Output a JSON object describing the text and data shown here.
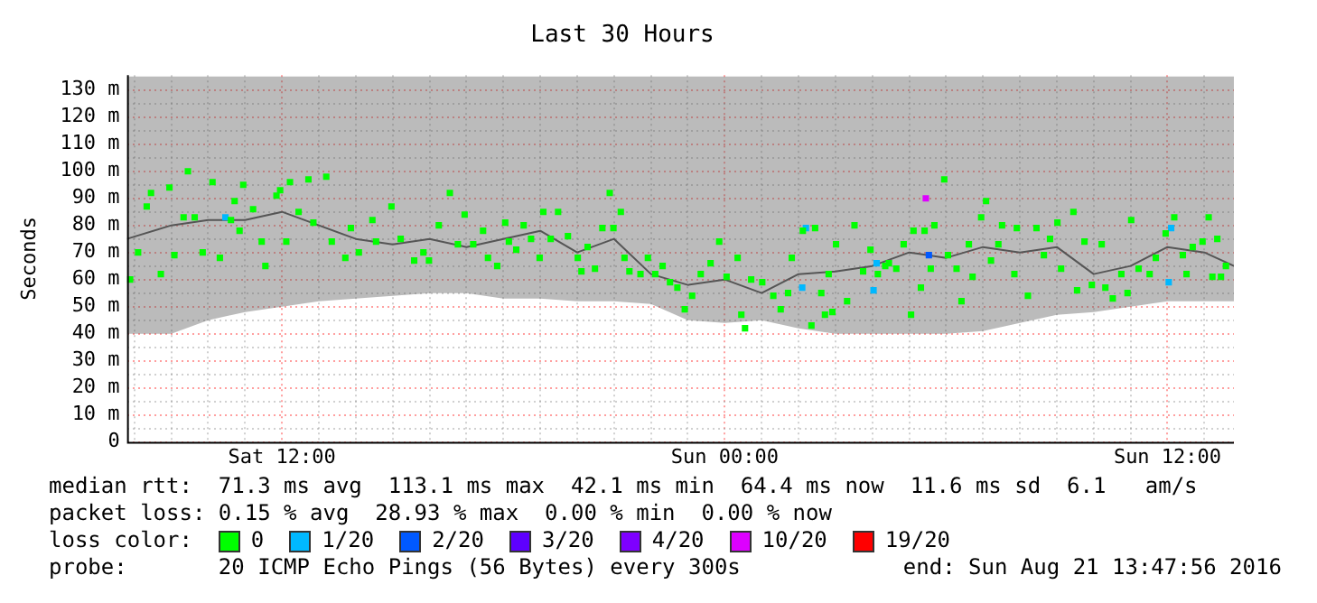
{
  "chart_data": {
    "type": "scatter",
    "title": "Last 30 Hours",
    "ylabel": "Seconds",
    "legend_title": "loss color:",
    "legend": "bottom",
    "marker": "square",
    "grid": true,
    "annotations": [
      "median rtt:  71.3 ms avg  113.1 ms max  42.1 ms min  64.4 ms now  11.6 ms sd  6.1   am/s",
      "packet loss: 0.15 % avg  28.93 % max  0.00 % min  0.00 % now",
      "probe:       20 ICMP Echo Pings (56 Bytes) every 300s",
      "end: Sun Aug 21 13:47:56 2016"
    ],
    "xlim": [
      "2016-08-20T07:48",
      "2016-08-21T13:48"
    ],
    "xticks": [
      {
        "value": "2016-08-20T08:00",
        "label": null
      },
      {
        "value": "2016-08-20T09:00",
        "label": null
      },
      {
        "value": "2016-08-20T10:00",
        "label": null
      },
      {
        "value": "2016-08-20T11:00",
        "label": null
      },
      {
        "value": "2016-08-20T12:00",
        "label": "Sat 12:00"
      },
      {
        "value": "2016-08-20T13:00",
        "label": null
      },
      {
        "value": "2016-08-20T14:00",
        "label": null
      },
      {
        "value": "2016-08-20T15:00",
        "label": null
      },
      {
        "value": "2016-08-20T16:00",
        "label": null
      },
      {
        "value": "2016-08-20T17:00",
        "label": null
      },
      {
        "value": "2016-08-20T18:00",
        "label": null
      },
      {
        "value": "2016-08-20T19:00",
        "label": null
      },
      {
        "value": "2016-08-20T20:00",
        "label": null
      },
      {
        "value": "2016-08-20T21:00",
        "label": null
      },
      {
        "value": "2016-08-20T22:00",
        "label": null
      },
      {
        "value": "2016-08-20T23:00",
        "label": null
      },
      {
        "value": "2016-08-21T00:00",
        "label": "Sun 00:00"
      },
      {
        "value": "2016-08-21T01:00",
        "label": null
      },
      {
        "value": "2016-08-21T02:00",
        "label": null
      },
      {
        "value": "2016-08-21T03:00",
        "label": null
      },
      {
        "value": "2016-08-21T04:00",
        "label": null
      },
      {
        "value": "2016-08-21T05:00",
        "label": null
      },
      {
        "value": "2016-08-21T06:00",
        "label": null
      },
      {
        "value": "2016-08-21T07:00",
        "label": null
      },
      {
        "value": "2016-08-21T08:00",
        "label": null
      },
      {
        "value": "2016-08-21T09:00",
        "label": null
      },
      {
        "value": "2016-08-21T10:00",
        "label": null
      },
      {
        "value": "2016-08-21T11:00",
        "label": null
      },
      {
        "value": "2016-08-21T12:00",
        "label": "Sun 12:00"
      },
      {
        "value": "2016-08-21T13:00",
        "label": null
      }
    ],
    "ylim": [
      0,
      135.5
    ],
    "yticks": [
      0,
      {
        "value": 5,
        "label": null
      },
      {
        "value": 10,
        "label": "10 m"
      },
      {
        "value": 15,
        "label": null
      },
      {
        "value": 20,
        "label": "20 m"
      },
      {
        "value": 25,
        "label": null
      },
      {
        "value": 30,
        "label": "30 m"
      },
      {
        "value": 35,
        "label": null
      },
      {
        "value": 40,
        "label": "40 m"
      },
      {
        "value": 45,
        "label": null
      },
      {
        "value": 50,
        "label": "50 m"
      },
      {
        "value": 55,
        "label": null
      },
      {
        "value": 60,
        "label": "60 m"
      },
      {
        "value": 65,
        "label": null
      },
      {
        "value": 70,
        "label": "70 m"
      },
      {
        "value": 75,
        "label": null
      },
      {
        "value": 80,
        "label": "80 m"
      },
      {
        "value": 85,
        "label": null
      },
      {
        "value": 90,
        "label": "90 m"
      },
      {
        "value": 95,
        "label": null
      },
      {
        "value": 100,
        "label": "100 m"
      },
      {
        "value": 105,
        "label": null
      },
      {
        "value": 110,
        "label": "110 m"
      },
      {
        "value": 115,
        "label": null
      },
      {
        "value": 120,
        "label": "120 m"
      },
      {
        "value": 125,
        "label": null
      },
      {
        "value": 130,
        "label": "130 m"
      }
    ],
    "series": [
      {
        "type": "line",
        "marker": "none",
        "color": "#555555",
        "x": [
          "2016-08-20T07:48",
          "2016-08-20T09:00",
          "2016-08-20T10:00",
          "2016-08-20T11:00",
          "2016-08-20T12:00",
          "2016-08-20T13:00",
          "2016-08-20T14:00",
          "2016-08-20T15:00",
          "2016-08-20T16:00",
          "2016-08-20T17:00",
          "2016-08-20T18:00",
          "2016-08-20T19:00",
          "2016-08-20T20:00",
          "2016-08-20T21:00",
          "2016-08-20T22:00",
          "2016-08-20T23:00",
          "2016-08-21T00:00",
          "2016-08-21T01:00",
          "2016-08-21T02:00",
          "2016-08-21T03:00",
          "2016-08-21T04:00",
          "2016-08-21T05:00",
          "2016-08-21T06:00",
          "2016-08-21T07:00",
          "2016-08-21T08:00",
          "2016-08-21T09:00",
          "2016-08-21T10:00",
          "2016-08-21T11:00",
          "2016-08-21T12:00",
          "2016-08-21T13:00",
          "2016-08-21T13:48"
        ],
        "values": [
          75,
          80,
          82,
          82,
          85,
          80,
          75,
          73,
          75,
          72,
          75,
          78,
          70,
          75,
          62,
          58,
          60,
          55,
          62,
          63,
          65,
          70,
          68,
          72,
          70,
          72,
          62,
          65,
          72,
          70,
          65
        ],
        "lower": [
          40,
          40,
          45,
          48,
          50,
          52,
          53,
          54,
          55,
          55,
          53,
          53,
          52,
          52,
          51,
          45,
          44,
          45,
          42,
          40,
          40,
          40,
          40,
          41,
          44,
          47,
          48,
          50,
          52,
          52,
          52
        ],
        "upper": [
          135,
          135,
          135,
          135,
          135,
          135,
          135,
          135,
          135,
          135,
          135,
          135,
          135,
          135,
          135,
          135,
          135,
          135,
          135,
          135,
          135,
          135,
          135,
          135,
          135,
          135,
          135,
          135,
          135,
          135,
          135
        ]
      },
      {
        "name": "0",
        "color": "#00ff00",
        "x": [
          "2016-08-20T07:53",
          "2016-08-20T08:06",
          "2016-08-20T08:20",
          "2016-08-20T08:27",
          "2016-08-20T08:43",
          "2016-08-20T08:57",
          "2016-08-20T09:05",
          "2016-08-20T09:20",
          "2016-08-20T09:27",
          "2016-08-20T09:38",
          "2016-08-20T09:51",
          "2016-08-20T10:07",
          "2016-08-20T10:19",
          "2016-08-20T10:37",
          "2016-08-20T10:43",
          "2016-08-20T10:51",
          "2016-08-20T10:57",
          "2016-08-20T11:13",
          "2016-08-20T11:27",
          "2016-08-20T11:33",
          "2016-08-20T11:51",
          "2016-08-20T11:57",
          "2016-08-20T12:07",
          "2016-08-20T12:13",
          "2016-08-20T12:27",
          "2016-08-20T12:43",
          "2016-08-20T12:51",
          "2016-08-20T13:12",
          "2016-08-20T13:21",
          "2016-08-20T13:43",
          "2016-08-20T13:52",
          "2016-08-20T14:05",
          "2016-08-20T14:27",
          "2016-08-20T14:33",
          "2016-08-20T14:58",
          "2016-08-20T15:13",
          "2016-08-20T15:35",
          "2016-08-20T15:50",
          "2016-08-20T15:59",
          "2016-08-20T16:15",
          "2016-08-20T16:33",
          "2016-08-20T16:46",
          "2016-08-20T16:57",
          "2016-08-20T17:11",
          "2016-08-20T17:27",
          "2016-08-20T17:35",
          "2016-08-20T17:50",
          "2016-08-20T18:03",
          "2016-08-20T18:09",
          "2016-08-20T18:21",
          "2016-08-20T18:33",
          "2016-08-20T18:45",
          "2016-08-20T18:59",
          "2016-08-20T19:05",
          "2016-08-20T19:17",
          "2016-08-20T19:29",
          "2016-08-20T19:45",
          "2016-08-20T20:01",
          "2016-08-20T20:07",
          "2016-08-20T20:17",
          "2016-08-20T20:29",
          "2016-08-20T20:41",
          "2016-08-20T20:53",
          "2016-08-20T20:59",
          "2016-08-20T21:11",
          "2016-08-20T21:17",
          "2016-08-20T21:25",
          "2016-08-20T21:43",
          "2016-08-20T21:55",
          "2016-08-20T22:07",
          "2016-08-20T22:19",
          "2016-08-20T22:31",
          "2016-08-20T22:43",
          "2016-08-20T22:55",
          "2016-08-20T23:07",
          "2016-08-20T23:21",
          "2016-08-20T23:37",
          "2016-08-20T23:51",
          "2016-08-21T00:03",
          "2016-08-21T00:21",
          "2016-08-21T00:27",
          "2016-08-21T00:33",
          "2016-08-21T00:43",
          "2016-08-21T01:01",
          "2016-08-21T01:19",
          "2016-08-21T01:31",
          "2016-08-21T01:43",
          "2016-08-21T01:49",
          "2016-08-21T02:07",
          "2016-08-21T02:21",
          "2016-08-21T02:27",
          "2016-08-21T02:37",
          "2016-08-21T02:43",
          "2016-08-21T02:49",
          "2016-08-21T02:55",
          "2016-08-21T03:01",
          "2016-08-21T03:19",
          "2016-08-21T03:31",
          "2016-08-21T03:45",
          "2016-08-21T03:57",
          "2016-08-21T04:09",
          "2016-08-21T04:21",
          "2016-08-21T04:27",
          "2016-08-21T04:39",
          "2016-08-21T04:51",
          "2016-08-21T05:03",
          "2016-08-21T05:07",
          "2016-08-21T05:19",
          "2016-08-21T05:25",
          "2016-08-21T05:35",
          "2016-08-21T05:41",
          "2016-08-21T05:57",
          "2016-08-21T06:03",
          "2016-08-21T06:17",
          "2016-08-21T06:25",
          "2016-08-21T06:37",
          "2016-08-21T06:43",
          "2016-08-21T06:57",
          "2016-08-21T07:05",
          "2016-08-21T07:13",
          "2016-08-21T07:25",
          "2016-08-21T07:31",
          "2016-08-21T07:51",
          "2016-08-21T07:55",
          "2016-08-21T08:13",
          "2016-08-21T08:27",
          "2016-08-21T08:39",
          "2016-08-21T08:49",
          "2016-08-21T09:01",
          "2016-08-21T09:07",
          "2016-08-21T09:27",
          "2016-08-21T09:33",
          "2016-08-21T09:45",
          "2016-08-21T09:57",
          "2016-08-21T10:13",
          "2016-08-21T10:19",
          "2016-08-21T10:31",
          "2016-08-21T10:45",
          "2016-08-21T10:55",
          "2016-08-21T11:01",
          "2016-08-21T11:13",
          "2016-08-21T11:31",
          "2016-08-21T11:41",
          "2016-08-21T11:57",
          "2016-08-21T12:11",
          "2016-08-21T12:25",
          "2016-08-21T12:31",
          "2016-08-21T12:41",
          "2016-08-21T12:57",
          "2016-08-21T13:07",
          "2016-08-21T13:13",
          "2016-08-21T13:21",
          "2016-08-21T13:27",
          "2016-08-21T13:35"
        ],
        "values": [
          60,
          70,
          87,
          92,
          62,
          94,
          69,
          83,
          100,
          83,
          70,
          96,
          68,
          82,
          89,
          78,
          95,
          86,
          74,
          65,
          91,
          93,
          74,
          96,
          85,
          97,
          81,
          98,
          74,
          68,
          79,
          70,
          82,
          74,
          87,
          75,
          67,
          70,
          67,
          80,
          92,
          73,
          84,
          73,
          78,
          68,
          65,
          81,
          74,
          71,
          80,
          75,
          68,
          85,
          75,
          85,
          76,
          68,
          63,
          72,
          64,
          79,
          92,
          79,
          85,
          68,
          63,
          62,
          68,
          62,
          65,
          59,
          57,
          49,
          54,
          62,
          66,
          74,
          61,
          68,
          47,
          42,
          60,
          59,
          54,
          49,
          55,
          68,
          78,
          43,
          79,
          55,
          47,
          62,
          48,
          73,
          52,
          80,
          63,
          71,
          62,
          65,
          66,
          64,
          73,
          47,
          78,
          57,
          78,
          64,
          80,
          97,
          69,
          64,
          52,
          73,
          61,
          83,
          89,
          67,
          73,
          80,
          62,
          79,
          54,
          79,
          69,
          75,
          81,
          64,
          85,
          56,
          74,
          58,
          73,
          57,
          53,
          62,
          55,
          82,
          64,
          62,
          68,
          77,
          83,
          69,
          62,
          72,
          74,
          83,
          61,
          75,
          61,
          65
        ]
      },
      {
        "name": "1/20",
        "color": "#00b8ff",
        "x": [
          "2016-08-20T10:28",
          "2016-08-21T02:06",
          "2016-08-21T02:12",
          "2016-08-21T04:02",
          "2016-08-21T04:07",
          "2016-08-21T12:02",
          "2016-08-21T12:06"
        ],
        "values": [
          83,
          57,
          79,
          56,
          66,
          59,
          79
        ]
      },
      {
        "name": "2/20",
        "color": "#0059ff",
        "x": [
          "2016-08-21T05:32"
        ],
        "values": [
          69
        ]
      },
      {
        "name": "3/20",
        "color": "#5e00ff"
      },
      {
        "name": "4/20",
        "color": "#7e00ff"
      },
      {
        "name": "10/20",
        "color": "#dd00ff",
        "x": [
          "2016-08-21T05:27"
        ],
        "values": [
          90
        ]
      },
      {
        "name": "19/20",
        "color": "#ff0000"
      }
    ]
  }
}
